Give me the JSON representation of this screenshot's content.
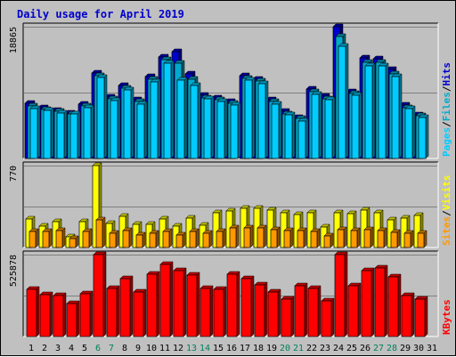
{
  "chart_data": {
    "type": "bar",
    "title": "Daily usage for April 2019",
    "categories": [
      "1",
      "2",
      "3",
      "4",
      "5",
      "6",
      "7",
      "8",
      "9",
      "10",
      "11",
      "12",
      "13",
      "14",
      "15",
      "16",
      "17",
      "18",
      "19",
      "20",
      "21",
      "22",
      "23",
      "24",
      "25",
      "26",
      "27",
      "28",
      "29",
      "30",
      "31"
    ],
    "weekend_days": [
      "6",
      "7",
      "13",
      "14",
      "20",
      "21",
      "27",
      "28"
    ],
    "panels": [
      {
        "id": "hits-files-pages",
        "ymax": 18865,
        "ymax_label": "18865",
        "legend": [
          "Pages",
          "Files",
          "Hits"
        ],
        "series": [
          {
            "name": "Hits",
            "color": "#0000cc",
            "values": [
              7900,
              7300,
              6900,
              6500,
              7800,
              12300,
              8800,
              10400,
              8400,
              11700,
              14500,
              15300,
              12100,
              9100,
              8700,
              8200,
              11900,
              11300,
              8400,
              6700,
              5900,
              9900,
              8900,
              18865,
              9600,
              14400,
              14300,
              12700,
              7600,
              6300,
              0
            ]
          },
          {
            "name": "Files",
            "color": "#00aacc",
            "values": [
              7500,
              7000,
              6700,
              6400,
              7500,
              11900,
              8500,
              10100,
              8100,
              11300,
              14100,
              13600,
              11300,
              8700,
              8400,
              7900,
              11500,
              11100,
              8100,
              6400,
              5700,
              9600,
              8600,
              17500,
              9300,
              13800,
              13800,
              12100,
              7300,
              6100,
              0
            ]
          },
          {
            "name": "Pages",
            "color": "#00ccff",
            "values": [
              7200,
              6900,
              6500,
              6400,
              7300,
              11600,
              8300,
              9800,
              7800,
              11000,
              13600,
              11200,
              10500,
              8500,
              8200,
              7600,
              11200,
              10700,
              7800,
              6200,
              5400,
              9200,
              8400,
              16100,
              9000,
              13300,
              13300,
              11700,
              7100,
              5800,
              0
            ]
          }
        ]
      },
      {
        "id": "visits-sites",
        "ymax": 770,
        "ymax_label": "770",
        "legend": [
          "Sites",
          "Visits"
        ],
        "series": [
          {
            "name": "Visits",
            "color": "#ffff00",
            "values": [
              270,
              200,
              240,
              100,
              240,
              770,
              230,
              290,
              220,
              220,
              270,
              200,
              280,
              210,
              330,
              340,
              370,
              370,
              350,
              330,
              310,
              330,
              190,
              330,
              320,
              350,
              330,
              260,
              280,
              300,
              0
            ]
          },
          {
            "name": "Sites",
            "color": "#ff9900",
            "values": [
              150,
              150,
              160,
              80,
              150,
              260,
              130,
              160,
              120,
              130,
              150,
              120,
              150,
              130,
              150,
              180,
              180,
              180,
              170,
              160,
              160,
              150,
              110,
              170,
              160,
              170,
              160,
              140,
              130,
              130,
              0
            ]
          }
        ]
      },
      {
        "id": "kbytes",
        "ymax": 525878,
        "ymax_label": "525878",
        "legend": [
          "KBytes"
        ],
        "series": [
          {
            "name": "KBytes",
            "color": "#ff0000",
            "values": [
              305000,
              267000,
              262000,
              213000,
              274000,
              525878,
              309000,
              374000,
              287000,
              401000,
              463000,
              424000,
              397000,
              309000,
              303000,
              401000,
              371000,
              331000,
              283000,
              242000,
              327000,
              307000,
              230000,
              525878,
              325000,
              425000,
              438000,
              384000,
              261000,
              239000,
              0
            ]
          }
        ]
      }
    ]
  }
}
